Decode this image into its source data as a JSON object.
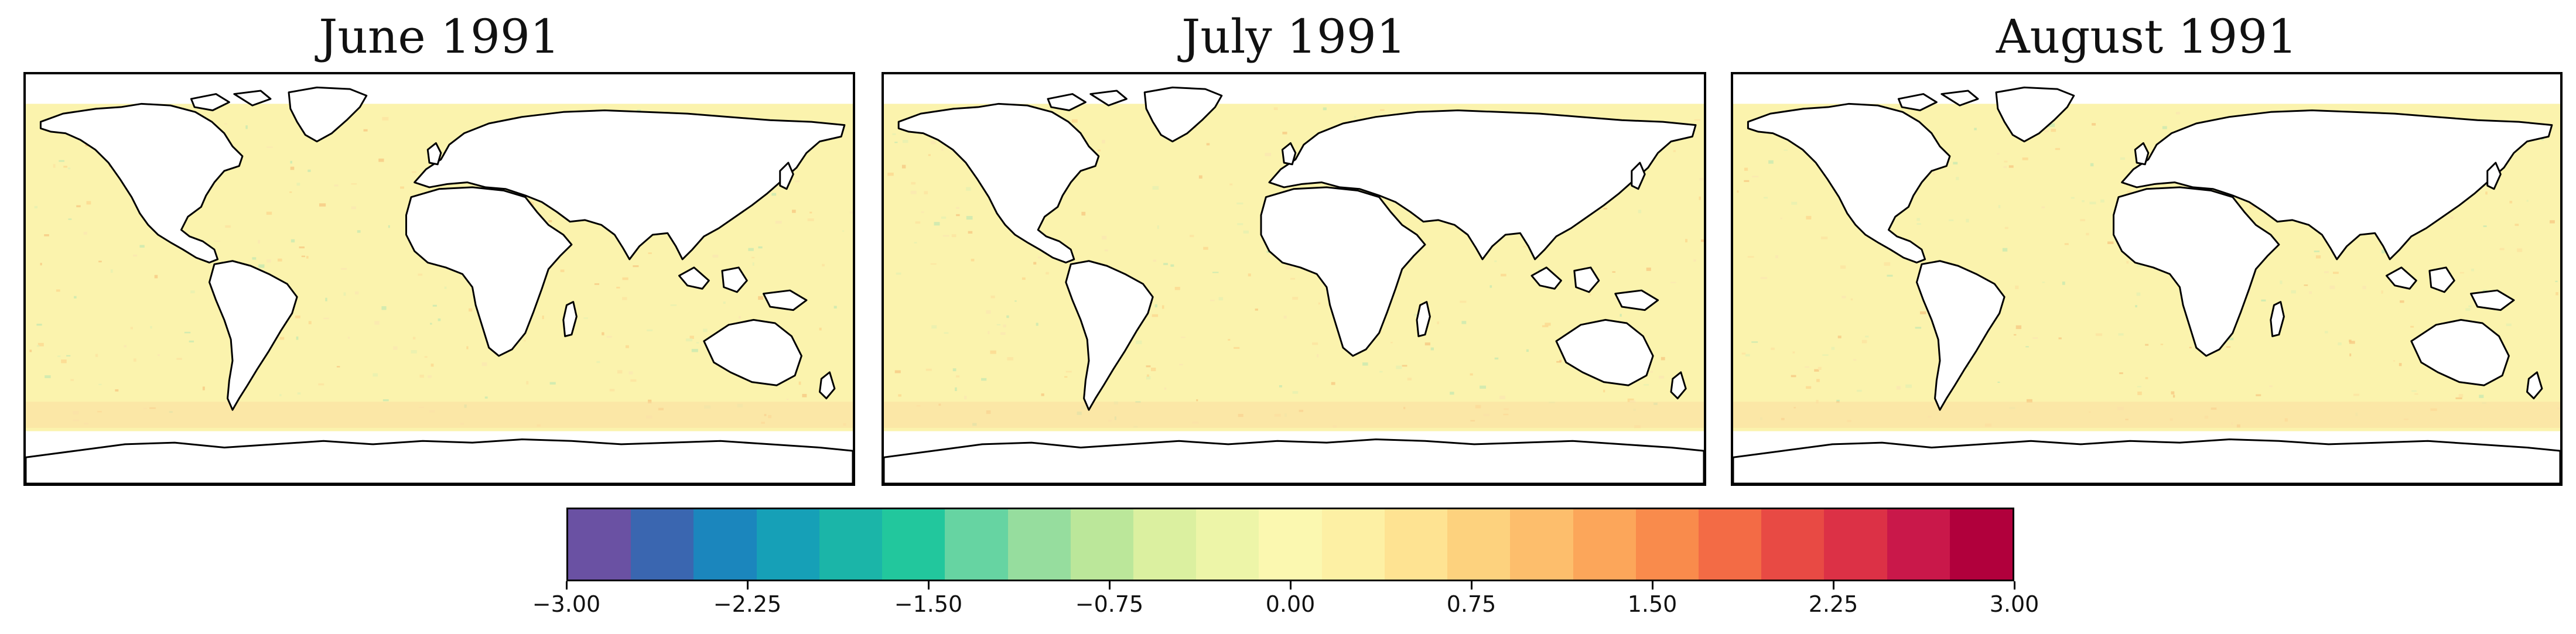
{
  "panels": [
    {
      "title": "June 1991"
    },
    {
      "title": "July 1991"
    },
    {
      "title": "August 1991"
    }
  ],
  "colorbar": {
    "min": -3.0,
    "max": 3.0,
    "tick_labels": [
      "−3.00",
      "−2.25",
      "−1.50",
      "−0.75",
      "0.00",
      "0.75",
      "1.50",
      "2.25",
      "3.00"
    ],
    "colors": [
      "#6a51a3",
      "#3a66b0",
      "#1b86bd",
      "#16a0b7",
      "#1bb5a8",
      "#22c79d",
      "#66d4a2",
      "#96dd9e",
      "#bbe79a",
      "#dbf0a0",
      "#edf5a8",
      "#fbf8b0",
      "#fdf0a4",
      "#fee392",
      "#fdd27e",
      "#fdbe6c",
      "#fca65a",
      "#f98b4c",
      "#f36b45",
      "#e84a44",
      "#dc3146",
      "#c9184a",
      "#b1003c"
    ]
  },
  "map_style": {
    "ocean_fill": "#fbf3ad",
    "land_fill": "#ffffff",
    "coast_stroke": "#000000"
  }
}
